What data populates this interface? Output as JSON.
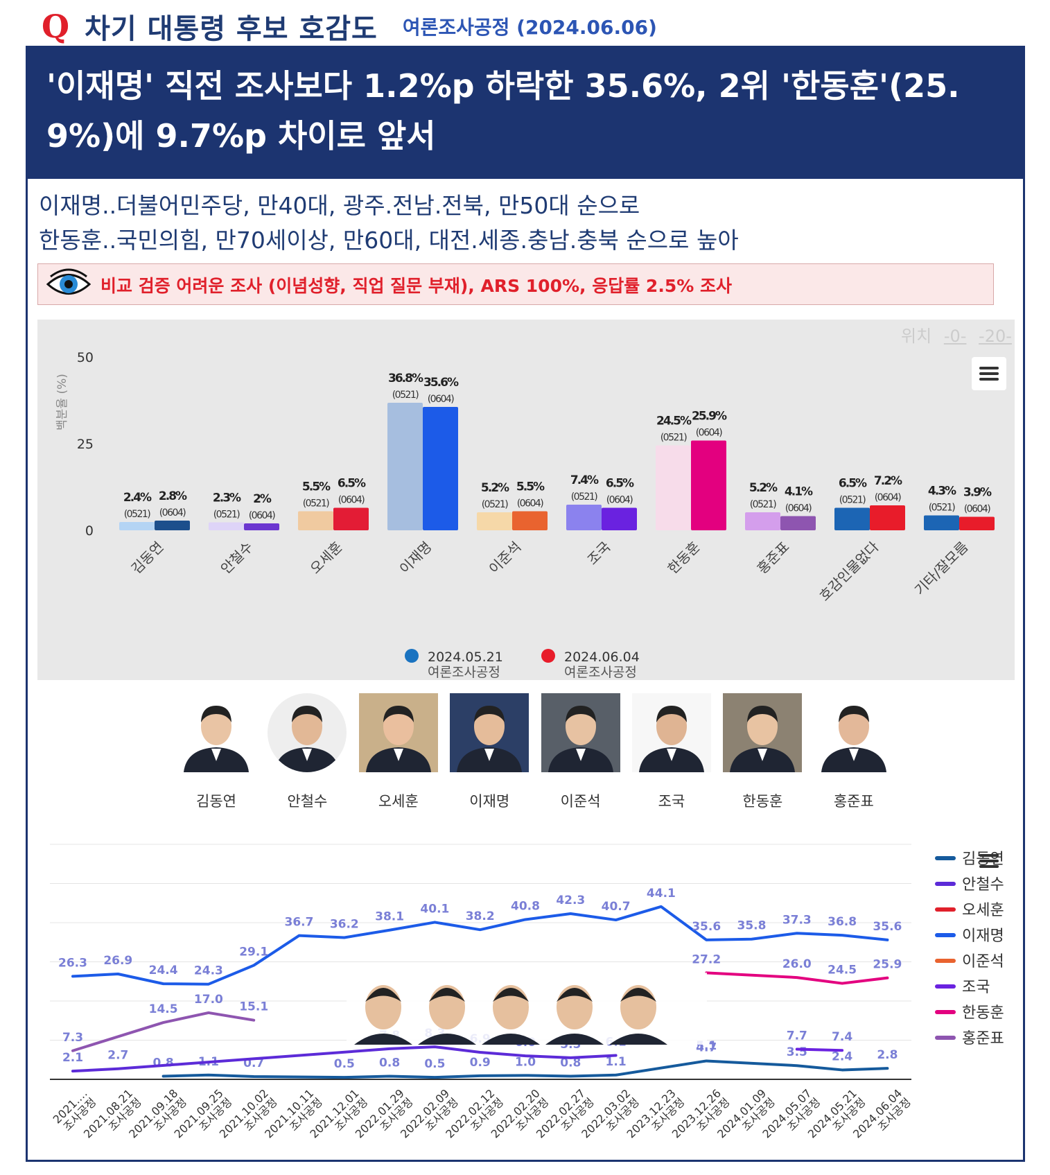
{
  "header": {
    "q_icon": "Q",
    "question": "차기 대통령 후보 호감도",
    "pollster": "여론조사공정 (2024.06.06)"
  },
  "headline": "'이재명' 직전 조사보다 1.2%p 하락한 35.6%, 2위 '한동훈'(25.9%)에 9.7%p 차이로 앞서",
  "subtitle_lines": [
    "이재명..더불어민주당, 만40대, 광주.전남.전북, 만50대 순으로",
    "한동훈..국민의힘, 만70세이상, 만60대, 대전.세종.충남.충북 순으로 높아"
  ],
  "warning": {
    "icon": "eye-icon",
    "text": "비교 검증 어려운 조사 (이념성향, 직업 질문 부재), ARS 100%, 응답률 2.5% 조사"
  },
  "position_links": {
    "label": "위치",
    "links": [
      "-0-",
      "-20-"
    ]
  },
  "candidates": [
    "김동연",
    "안철수",
    "오세훈",
    "이재명",
    "이준석",
    "조국",
    "한동훈",
    "홍준표"
  ],
  "colors": {
    "navy": "#1c3470",
    "red": "#e0202b"
  },
  "chart_data": [
    {
      "type": "bar",
      "ylabel": "백분율 (%)",
      "ylim": [
        0,
        50
      ],
      "yticks": [
        0,
        25,
        50
      ],
      "categories": [
        "김동연",
        "안철수",
        "오세훈",
        "이재명",
        "이준석",
        "조국",
        "한동훈",
        "홍준표",
        "호감인물없다",
        "기타/잘모름"
      ],
      "series": [
        {
          "name": "2024.05.21",
          "sub": "여론조사공정",
          "tag": "(0521)",
          "values": [
            2.4,
            2.3,
            5.5,
            36.8,
            5.2,
            7.4,
            24.5,
            5.2,
            6.5,
            4.3
          ],
          "colors": [
            "#b4d4f4",
            "#ded4f8",
            "#f0caa0",
            "#a6bedf",
            "#f6d8a8",
            "#8b82ee",
            "#f7dcea",
            "#d49eec",
            "#1c65b4",
            "#1c65b4"
          ]
        },
        {
          "name": "2024.06.04",
          "sub": "여론조사공정",
          "tag": "(0604)",
          "values": [
            2.8,
            2.0,
            6.5,
            35.6,
            5.5,
            6.5,
            25.9,
            4.1,
            7.2,
            3.9
          ],
          "colors": [
            "#1c4f8c",
            "#6b36d0",
            "#e31c35",
            "#1c5be8",
            "#e9632f",
            "#6a22e0",
            "#e3007f",
            "#8e55b0",
            "#e81c2a",
            "#e81c2a"
          ]
        }
      ],
      "legend": [
        {
          "label": "2024.05.21",
          "sub": "여론조사공정",
          "color": "#1a73c0"
        },
        {
          "label": "2024.06.04",
          "sub": "여론조사공정",
          "color": "#e81c2a"
        }
      ],
      "legend_position": "bottom"
    },
    {
      "type": "line",
      "x": [
        "2021.…\n조사공정",
        "2021.08.21\n조사공정",
        "2021.09.18\n조사공정",
        "2021.09.25\n조사공정",
        "2021.10.02\n조사공정",
        "2021.10.11\n조사공정",
        "2021.12.01\n조사공정",
        "2022.01.29\n조사공정",
        "2022.02.09\n조사공정",
        "2022.02.12\n조사공정",
        "2022.02.20\n조사공정",
        "2022.02.27\n조사공정",
        "2022.03.02\n조사공정",
        "2023.12.23\n조사공정",
        "2023.12.26\n조사공정",
        "2024.01.09\n조사공정",
        "2024.05.07\n조사공정",
        "2024.05.21\n조사공정",
        "2024.06.04\n조사공정"
      ],
      "grid": true,
      "legend_position": "right",
      "series": [
        {
          "name": "김동연",
          "color": "#155a9c",
          "values": [
            null,
            null,
            0.8,
            1.1,
            0.7,
            null,
            0.5,
            0.8,
            0.5,
            0.9,
            1.0,
            0.8,
            1.1,
            null,
            4.7,
            null,
            3.5,
            2.4,
            2.8
          ]
        },
        {
          "name": "안철수",
          "color": "#5c2bd8",
          "values": [
            2.1,
            2.7,
            null,
            null,
            null,
            null,
            null,
            7.8,
            8.3,
            6.9,
            6.0,
            5.5,
            6.1,
            null,
            null,
            null,
            null,
            null,
            null
          ]
        },
        {
          "name": "오세훈",
          "color": "#e0202b",
          "values": [
            null,
            null,
            null,
            null,
            null,
            null,
            null,
            null,
            null,
            null,
            null,
            null,
            null,
            null,
            5.1,
            null,
            null,
            null,
            null
          ]
        },
        {
          "name": "이재명",
          "color": "#1c5be8",
          "values": [
            26.3,
            26.9,
            24.4,
            24.3,
            29.1,
            36.7,
            36.2,
            38.1,
            40.1,
            38.2,
            40.8,
            42.3,
            40.7,
            44.1,
            35.6,
            35.8,
            37.3,
            36.8,
            35.6
          ]
        },
        {
          "name": "이준석",
          "color": "#e9632f",
          "values": [
            null,
            null,
            null,
            null,
            null,
            null,
            null,
            null,
            null,
            null,
            null,
            null,
            null,
            null,
            null,
            null,
            null,
            null,
            null
          ]
        },
        {
          "name": "조국",
          "color": "#6a22e0",
          "values": [
            null,
            null,
            null,
            null,
            null,
            null,
            null,
            null,
            null,
            null,
            null,
            null,
            null,
            null,
            null,
            null,
            7.7,
            7.4,
            null
          ]
        },
        {
          "name": "한동훈",
          "color": "#e3007f",
          "values": [
            null,
            null,
            null,
            null,
            null,
            null,
            null,
            null,
            null,
            null,
            null,
            null,
            null,
            null,
            27.2,
            null,
            26.0,
            24.5,
            25.9
          ]
        },
        {
          "name": "홍준표",
          "color": "#8e55b0",
          "values": [
            7.3,
            null,
            14.5,
            17.0,
            15.1,
            null,
            null,
            null,
            null,
            null,
            null,
            null,
            null,
            null,
            null,
            null,
            null,
            null,
            null
          ]
        }
      ]
    }
  ]
}
